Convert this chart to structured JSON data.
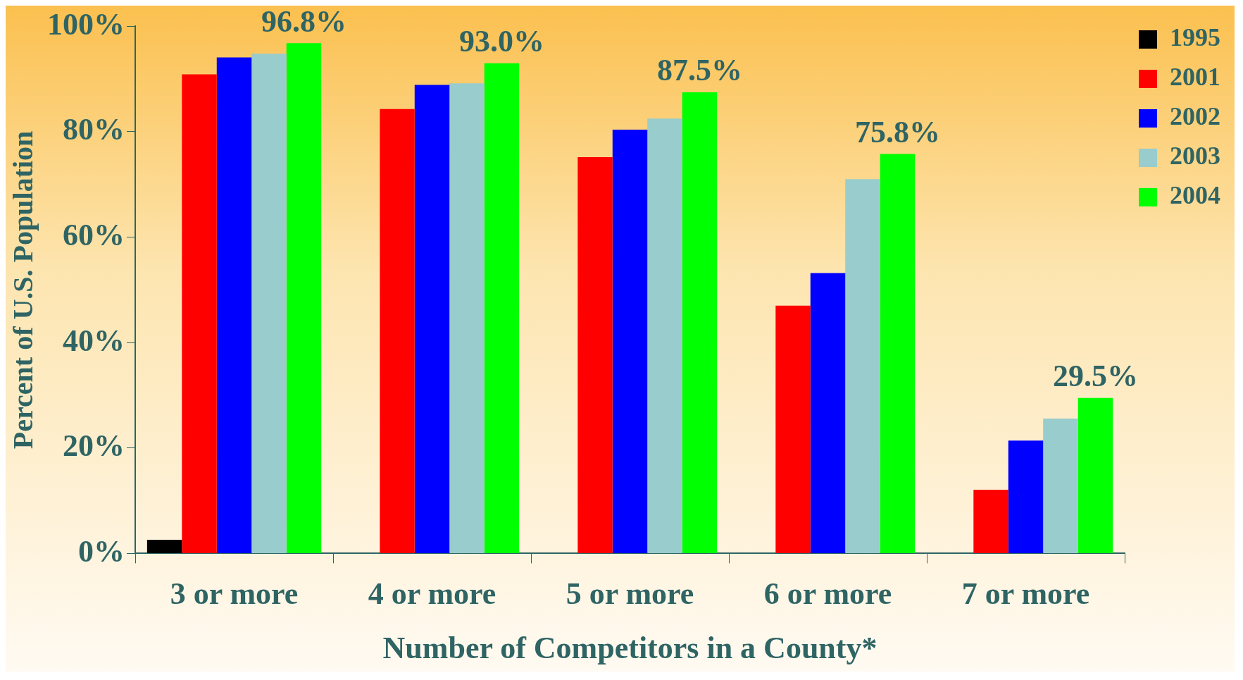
{
  "chart_data": {
    "type": "bar",
    "xlabel": "Number of Competitors in a County*",
    "ylabel": "Percent of U.S. Population",
    "categories": [
      "3 or more",
      "4 or more",
      "5 or more",
      "6 or more",
      "7 or more"
    ],
    "series": [
      {
        "name": "1995",
        "color": "#000000",
        "values": [
          2.6,
          null,
          null,
          null,
          null
        ]
      },
      {
        "name": "2001",
        "color": "#ff0000",
        "values": [
          90.9,
          84.3,
          75.2,
          47.0,
          12.1
        ]
      },
      {
        "name": "2002",
        "color": "#0000ff",
        "values": [
          94.1,
          88.9,
          80.4,
          53.2,
          21.4
        ]
      },
      {
        "name": "2003",
        "color": "#99cccc",
        "values": [
          94.8,
          89.2,
          82.5,
          71.0,
          25.6
        ]
      },
      {
        "name": "2004",
        "color": "#00ff00",
        "values": [
          96.8,
          93.0,
          87.5,
          75.8,
          29.5
        ],
        "value_labels": [
          "96.8%",
          "93.0%",
          "87.5%",
          "75.8%",
          "29.5%"
        ]
      }
    ],
    "ylim": [
      0,
      100
    ],
    "yticks": [
      {
        "value": 0,
        "label": "0%"
      },
      {
        "value": 20,
        "label": "20%"
      },
      {
        "value": 40,
        "label": "40%"
      },
      {
        "value": 60,
        "label": "60%"
      },
      {
        "value": 80,
        "label": "80%"
      },
      {
        "value": 100,
        "label": "100%"
      }
    ],
    "grid": false,
    "legend": "top right"
  }
}
